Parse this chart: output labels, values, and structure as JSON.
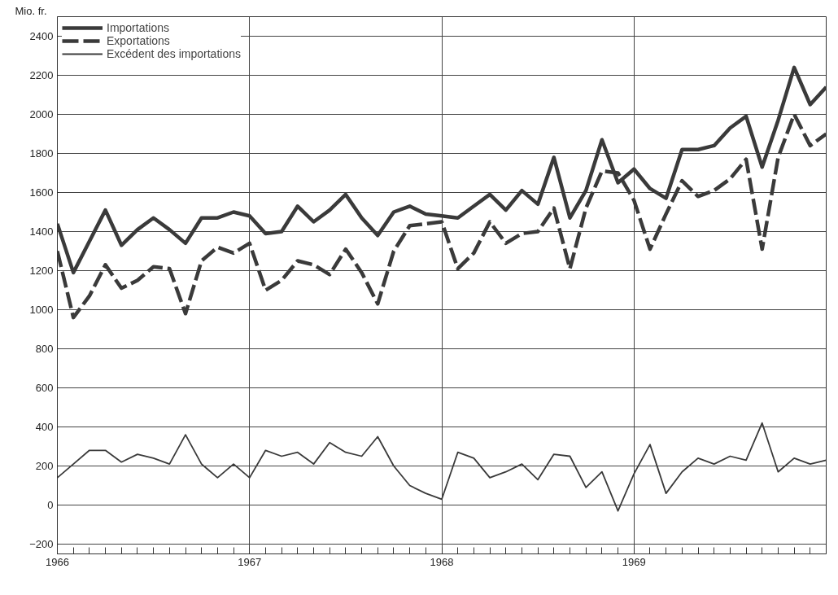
{
  "chart_data": {
    "type": "line",
    "ylabel": "Mio. fr.",
    "legend": "top left",
    "grid": true,
    "x": [
      "1966-01",
      "1966-02",
      "1966-03",
      "1966-04",
      "1966-05",
      "1966-06",
      "1966-07",
      "1966-08",
      "1966-09",
      "1966-10",
      "1966-11",
      "1966-12",
      "1967-01",
      "1967-02",
      "1967-03",
      "1967-04",
      "1967-05",
      "1967-06",
      "1967-07",
      "1967-08",
      "1967-09",
      "1967-10",
      "1967-11",
      "1967-12",
      "1968-01",
      "1968-02",
      "1968-03",
      "1968-04",
      "1968-05",
      "1968-06",
      "1968-07",
      "1968-08",
      "1968-09",
      "1968-10",
      "1968-11",
      "1968-12",
      "1969-01",
      "1969-02",
      "1969-03",
      "1969-04",
      "1969-05",
      "1969-06",
      "1969-07",
      "1969-08",
      "1969-09",
      "1969-10",
      "1969-11",
      "1969-12",
      "1970-01"
    ],
    "series": [
      {
        "name": "Importations",
        "color": "#3a3a3a",
        "line_style": "solid",
        "values": [
          1440,
          1190,
          1350,
          1510,
          1330,
          1410,
          1470,
          1410,
          1340,
          1470,
          1470,
          1500,
          1480,
          1390,
          1400,
          1530,
          1450,
          1510,
          1590,
          1470,
          1380,
          1500,
          1530,
          1490,
          1480,
          1470,
          1530,
          1590,
          1510,
          1610,
          1540,
          1780,
          1470,
          1610,
          1870,
          1650,
          1720,
          1620,
          1570,
          1820,
          1820,
          1840,
          1930,
          1990,
          1730,
          1970,
          2240,
          2050,
          2140
        ]
      },
      {
        "name": "Exportations",
        "color": "#3a3a3a",
        "line_style": "dashed",
        "values": [
          1300,
          960,
          1070,
          1230,
          1110,
          1150,
          1220,
          1210,
          980,
          1250,
          1320,
          1290,
          1340,
          1100,
          1150,
          1250,
          1230,
          1180,
          1310,
          1190,
          1030,
          1300,
          1430,
          1440,
          1450,
          1210,
          1290,
          1450,
          1340,
          1390,
          1400,
          1520,
          1210,
          1520,
          1710,
          1700,
          1560,
          1310,
          1490,
          1660,
          1580,
          1610,
          1670,
          1770,
          1310,
          1780,
          2000,
          1840,
          1900
        ]
      },
      {
        "name": "Excédent des importations",
        "color": "#3a3a3a",
        "line_style": "solid",
        "values": [
          140,
          210,
          280,
          280,
          220,
          260,
          240,
          210,
          360,
          210,
          140,
          210,
          140,
          280,
          250,
          270,
          210,
          320,
          270,
          250,
          350,
          200,
          100,
          60,
          30,
          270,
          240,
          140,
          170,
          210,
          130,
          260,
          250,
          90,
          170,
          -30,
          160,
          310,
          60,
          170,
          240,
          210,
          250,
          230,
          420,
          170,
          240,
          210,
          230
        ]
      }
    ],
    "xlim": [
      "1966-01",
      "1970-01"
    ],
    "xticks": [
      {
        "value": "1966-01",
        "label": "1966"
      },
      {
        "value": "1966-02",
        "label": null
      },
      {
        "value": "1966-03",
        "label": null
      },
      {
        "value": "1966-04",
        "label": null
      },
      {
        "value": "1966-05",
        "label": null
      },
      {
        "value": "1966-06",
        "label": null
      },
      {
        "value": "1966-07",
        "label": null
      },
      {
        "value": "1966-08",
        "label": null
      },
      {
        "value": "1966-09",
        "label": null
      },
      {
        "value": "1966-10",
        "label": null
      },
      {
        "value": "1966-11",
        "label": null
      },
      {
        "value": "1966-12",
        "label": null
      },
      {
        "value": "1967-01",
        "label": "1967"
      },
      {
        "value": "1967-02",
        "label": null
      },
      {
        "value": "1967-03",
        "label": null
      },
      {
        "value": "1967-04",
        "label": null
      },
      {
        "value": "1967-05",
        "label": null
      },
      {
        "value": "1967-06",
        "label": null
      },
      {
        "value": "1967-07",
        "label": null
      },
      {
        "value": "1967-08",
        "label": null
      },
      {
        "value": "1967-09",
        "label": null
      },
      {
        "value": "1967-10",
        "label": null
      },
      {
        "value": "1967-11",
        "label": null
      },
      {
        "value": "1967-12",
        "label": null
      },
      {
        "value": "1968-01",
        "label": "1968"
      },
      {
        "value": "1968-02",
        "label": null
      },
      {
        "value": "1968-03",
        "label": null
      },
      {
        "value": "1968-04",
        "label": null
      },
      {
        "value": "1968-05",
        "label": null
      },
      {
        "value": "1968-06",
        "label": null
      },
      {
        "value": "1968-07",
        "label": null
      },
      {
        "value": "1968-08",
        "label": null
      },
      {
        "value": "1968-09",
        "label": null
      },
      {
        "value": "1968-10",
        "label": null
      },
      {
        "value": "1968-11",
        "label": null
      },
      {
        "value": "1968-12",
        "label": null
      },
      {
        "value": "1969-01",
        "label": "1969"
      },
      {
        "value": "1969-02",
        "label": null
      },
      {
        "value": "1969-03",
        "label": null
      },
      {
        "value": "1969-04",
        "label": null
      },
      {
        "value": "1969-05",
        "label": null
      },
      {
        "value": "1969-06",
        "label": null
      },
      {
        "value": "1969-07",
        "label": null
      },
      {
        "value": "1969-08",
        "label": null
      },
      {
        "value": "1969-09",
        "label": null
      },
      {
        "value": "1969-10",
        "label": null
      },
      {
        "value": "1969-11",
        "label": null
      },
      {
        "value": "1969-12",
        "label": null
      }
    ],
    "ylim": [
      -250,
      2500
    ],
    "yticks": [
      -200,
      0,
      200,
      400,
      600,
      800,
      1000,
      1200,
      1400,
      1600,
      1800,
      2000,
      2200,
      2400
    ]
  }
}
